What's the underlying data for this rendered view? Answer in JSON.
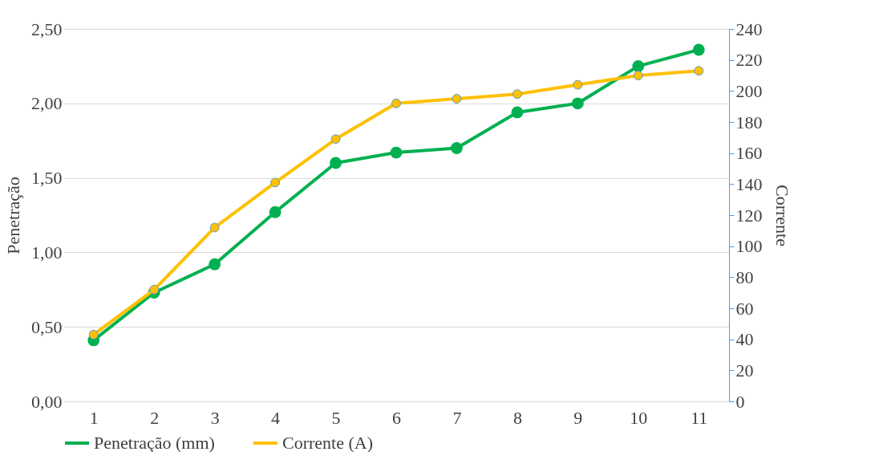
{
  "chart_data": {
    "type": "line",
    "xlabel": null,
    "ylabel": "Penetração",
    "y2label": "Corrente",
    "categories": [
      "1",
      "2",
      "3",
      "4",
      "5",
      "6",
      "7",
      "8",
      "9",
      "10",
      "11"
    ],
    "series": [
      {
        "name": "Penetração (mm)",
        "color": "#00b050",
        "values": [
          0.41,
          0.73,
          0.92,
          1.27,
          1.6,
          1.67,
          1.7,
          1.94,
          2.0,
          2.25,
          2.36
        ]
      },
      {
        "name": "Corrente (A)",
        "color": "#ffc000",
        "axis": "y2",
        "values": [
          43,
          72,
          112,
          141,
          169,
          192,
          195,
          198,
          204,
          210,
          213
        ]
      }
    ],
    "ylim": [
      0,
      2.5
    ],
    "yticks": [
      {
        "value": 0,
        "label": "0,00"
      },
      {
        "value": 0.5,
        "label": "0,50"
      },
      {
        "value": 1,
        "label": "1,00"
      },
      {
        "value": 1.5,
        "label": "1,50"
      },
      {
        "value": 2,
        "label": "2,00"
      },
      {
        "value": 2.5,
        "label": "2,50"
      }
    ],
    "y2lim": [
      0,
      240
    ],
    "y2ticks": [
      0,
      20,
      40,
      60,
      80,
      100,
      120,
      140,
      160,
      180,
      200,
      220,
      240
    ],
    "grid": "y",
    "legend": "bottom",
    "marker": "circle",
    "line_style": "solid"
  }
}
